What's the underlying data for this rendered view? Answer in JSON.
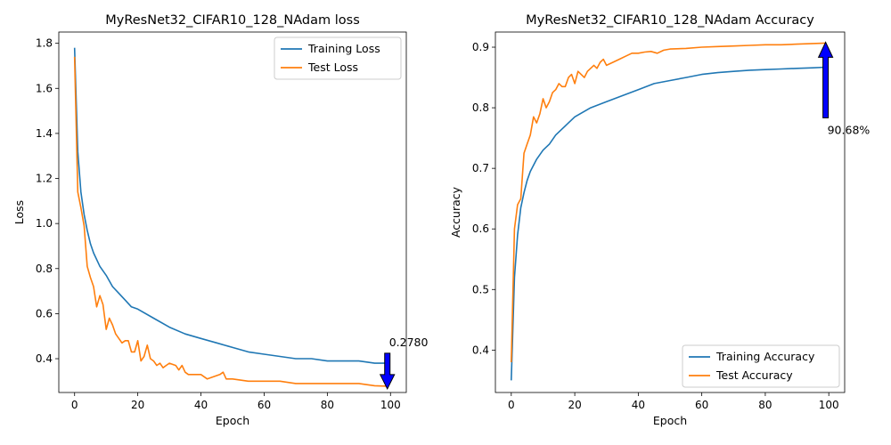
{
  "chart_data": [
    {
      "type": "line",
      "title": "MyResNet32_CIFAR10_128_NAdam loss",
      "xlabel": "Epoch",
      "ylabel": "Loss",
      "xlim": [
        -5,
        105
      ],
      "ylim": [
        0.25,
        1.85
      ],
      "xticks": [
        0,
        20,
        40,
        60,
        80,
        100
      ],
      "yticks": [
        0.4,
        0.6,
        0.8,
        1.0,
        1.2,
        1.4,
        1.6,
        1.8
      ],
      "xtick_labels": [
        "0",
        "20",
        "40",
        "60",
        "80",
        "100"
      ],
      "ytick_labels": [
        "0.4",
        "0.6",
        "0.8",
        "1.0",
        "1.2",
        "1.4",
        "1.6",
        "1.8"
      ],
      "legend_position": "top-right",
      "grid": false,
      "series": [
        {
          "name": "Training Loss",
          "color": "#1f77b4",
          "x": [
            0,
            1,
            2,
            3,
            4,
            5,
            6,
            8,
            10,
            12,
            14,
            16,
            18,
            20,
            25,
            30,
            35,
            40,
            45,
            50,
            55,
            60,
            65,
            70,
            75,
            80,
            85,
            90,
            95,
            99
          ],
          "y": [
            1.78,
            1.32,
            1.14,
            1.04,
            0.97,
            0.91,
            0.87,
            0.81,
            0.77,
            0.72,
            0.69,
            0.66,
            0.63,
            0.62,
            0.58,
            0.54,
            0.51,
            0.49,
            0.47,
            0.45,
            0.43,
            0.42,
            0.41,
            0.4,
            0.4,
            0.39,
            0.39,
            0.39,
            0.38,
            0.38
          ]
        },
        {
          "name": "Test Loss",
          "color": "#ff7f0e",
          "x": [
            0,
            1,
            2,
            3,
            4,
            5,
            6,
            7,
            8,
            9,
            10,
            11,
            12,
            13,
            14,
            15,
            16,
            17,
            18,
            19,
            20,
            21,
            22,
            23,
            24,
            25,
            26,
            27,
            28,
            29,
            30,
            32,
            33,
            34,
            35,
            36,
            38,
            40,
            42,
            44,
            46,
            47,
            48,
            50,
            55,
            60,
            65,
            70,
            75,
            80,
            85,
            90,
            95,
            99
          ],
          "y": [
            1.74,
            1.14,
            1.07,
            0.99,
            0.81,
            0.76,
            0.72,
            0.63,
            0.68,
            0.64,
            0.53,
            0.58,
            0.55,
            0.51,
            0.49,
            0.47,
            0.48,
            0.48,
            0.43,
            0.43,
            0.48,
            0.39,
            0.41,
            0.46,
            0.4,
            0.39,
            0.37,
            0.38,
            0.36,
            0.37,
            0.38,
            0.37,
            0.35,
            0.37,
            0.34,
            0.33,
            0.33,
            0.33,
            0.31,
            0.32,
            0.33,
            0.34,
            0.31,
            0.31,
            0.3,
            0.3,
            0.3,
            0.29,
            0.29,
            0.29,
            0.29,
            0.29,
            0.28,
            0.278
          ]
        }
      ],
      "annotation": {
        "text": "0.2780",
        "x": 99,
        "y": 0.278,
        "arrow": "down",
        "arrow_color": "#0000ff"
      }
    },
    {
      "type": "line",
      "title": "MyResNet32_CIFAR10_128_NAdam Accuracy",
      "xlabel": "Epoch",
      "ylabel": "Accuracy",
      "xlim": [
        -5,
        105
      ],
      "ylim": [
        0.33,
        0.925
      ],
      "xticks": [
        0,
        20,
        40,
        60,
        80,
        100
      ],
      "yticks": [
        0.4,
        0.5,
        0.6,
        0.7,
        0.8,
        0.9
      ],
      "xtick_labels": [
        "0",
        "20",
        "40",
        "60",
        "80",
        "100"
      ],
      "ytick_labels": [
        "0.4",
        "0.5",
        "0.6",
        "0.7",
        "0.8",
        "0.9"
      ],
      "legend_position": "lower-right",
      "grid": false,
      "series": [
        {
          "name": "Training Accuracy",
          "color": "#1f77b4",
          "x": [
            0,
            1,
            2,
            3,
            4,
            5,
            6,
            8,
            10,
            12,
            14,
            16,
            18,
            20,
            25,
            30,
            35,
            40,
            45,
            50,
            55,
            60,
            65,
            70,
            75,
            80,
            85,
            90,
            95,
            99
          ],
          "y": [
            0.35,
            0.52,
            0.59,
            0.635,
            0.66,
            0.68,
            0.695,
            0.715,
            0.73,
            0.74,
            0.755,
            0.765,
            0.775,
            0.785,
            0.8,
            0.81,
            0.82,
            0.83,
            0.84,
            0.845,
            0.85,
            0.855,
            0.858,
            0.86,
            0.862,
            0.863,
            0.864,
            0.865,
            0.866,
            0.867
          ]
        },
        {
          "name": "Test Accuracy",
          "color": "#ff7f0e",
          "x": [
            0,
            1,
            2,
            3,
            4,
            5,
            6,
            7,
            8,
            9,
            10,
            11,
            12,
            13,
            14,
            15,
            16,
            17,
            18,
            19,
            20,
            21,
            22,
            23,
            24,
            25,
            26,
            27,
            28,
            29,
            30,
            32,
            34,
            36,
            38,
            40,
            42,
            44,
            46,
            48,
            50,
            55,
            60,
            65,
            70,
            75,
            80,
            85,
            90,
            95,
            99
          ],
          "y": [
            0.38,
            0.6,
            0.64,
            0.65,
            0.725,
            0.74,
            0.755,
            0.785,
            0.775,
            0.79,
            0.815,
            0.8,
            0.81,
            0.825,
            0.83,
            0.84,
            0.835,
            0.835,
            0.85,
            0.855,
            0.84,
            0.86,
            0.855,
            0.85,
            0.86,
            0.865,
            0.87,
            0.865,
            0.875,
            0.88,
            0.87,
            0.875,
            0.88,
            0.885,
            0.89,
            0.89,
            0.892,
            0.893,
            0.89,
            0.895,
            0.897,
            0.898,
            0.9,
            0.901,
            0.902,
            0.903,
            0.904,
            0.904,
            0.905,
            0.906,
            0.9068
          ]
        }
      ],
      "annotation": {
        "text": "90.68%",
        "x": 99,
        "y": 0.9068,
        "arrow": "up",
        "arrow_color": "#0000ff"
      }
    }
  ]
}
